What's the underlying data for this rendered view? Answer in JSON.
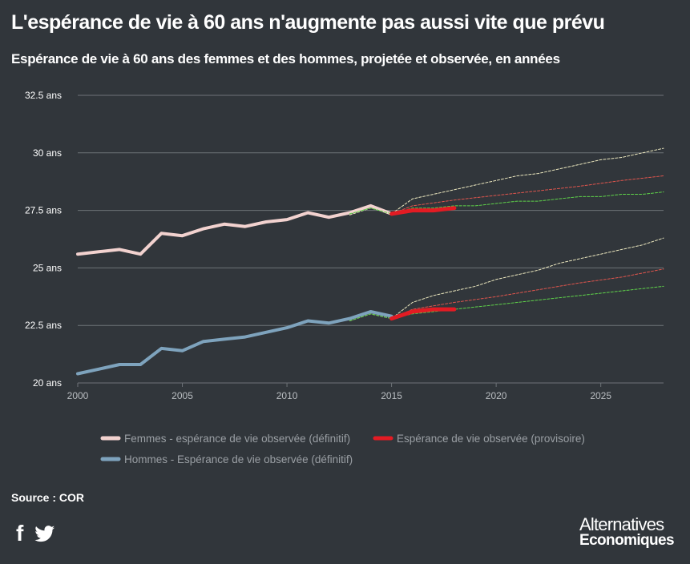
{
  "header": {
    "title": "L'espérance de vie à 60 ans n'augmente pas aussi vite que prévu",
    "subtitle": "Espérance de vie à 60 ans des femmes et des hommes, projetée et observée, en années"
  },
  "footer": {
    "source": "Source : COR",
    "brand_line1": "Alternatives",
    "brand_line2": "Economiques"
  },
  "social": {
    "facebook_icon": "facebook-icon",
    "twitter_icon": "twitter-icon"
  },
  "colors": {
    "background": "#31363b",
    "femmes": "#f2d2cf",
    "hommes": "#7ea3bd",
    "provisoire": "#e31b23",
    "proj_high": "#ece8bf",
    "proj_mid": "#e0554d",
    "proj_low": "#5fd44a",
    "grid": "#6e7378"
  },
  "chart_data": {
    "type": "line",
    "xlim": [
      2000,
      2028
    ],
    "ylim": [
      20,
      32.5
    ],
    "x_ticks": [
      2000,
      2005,
      2010,
      2015,
      2020,
      2025
    ],
    "y_ticks": [
      20,
      22.5,
      25,
      27.5,
      30,
      32.5
    ],
    "y_tick_labels": [
      "20 ans",
      "22.5 ans",
      "25 ans",
      "27.5 ans",
      "30 ans",
      "32.5 ans"
    ],
    "legend": [
      {
        "name": "Femmes - espérance de vie observée (définitif)",
        "color": "#f2d2cf"
      },
      {
        "name": "Espérance de vie observée (provisoire)",
        "color": "#e31b23"
      },
      {
        "name": "Hommes - Espérance de vie observée (définitif)",
        "color": "#7ea3bd"
      }
    ],
    "series": [
      {
        "name": "Femmes - espérance de vie observée (définitif)",
        "style": "solid",
        "x": [
          2000,
          2001,
          2002,
          2003,
          2004,
          2005,
          2006,
          2007,
          2008,
          2009,
          2010,
          2011,
          2012,
          2013,
          2014,
          2015
        ],
        "values": [
          25.6,
          25.7,
          25.8,
          25.6,
          26.5,
          26.4,
          26.7,
          26.9,
          26.8,
          27.0,
          27.1,
          27.4,
          27.2,
          27.4,
          27.7,
          27.35
        ]
      },
      {
        "name": "Hommes - Espérance de vie observée (définitif)",
        "style": "solid",
        "x": [
          2000,
          2001,
          2002,
          2003,
          2004,
          2005,
          2006,
          2007,
          2008,
          2009,
          2010,
          2011,
          2012,
          2013,
          2014,
          2015
        ],
        "values": [
          20.4,
          20.6,
          20.8,
          20.8,
          21.5,
          21.4,
          21.8,
          21.9,
          22.0,
          22.2,
          22.4,
          22.7,
          22.6,
          22.8,
          23.1,
          22.9
        ]
      },
      {
        "name": "Espérance de vie observée (provisoire)",
        "group": "femmes",
        "style": "thick",
        "x": [
          2015,
          2016,
          2017,
          2018
        ],
        "values": [
          27.35,
          27.5,
          27.5,
          27.6
        ]
      },
      {
        "name": "Espérance de vie observée (provisoire)",
        "group": "hommes",
        "style": "thick",
        "x": [
          2015,
          2016,
          2017,
          2018
        ],
        "values": [
          22.8,
          23.1,
          23.2,
          23.2
        ]
      },
      {
        "group": "femmes-proj-haute",
        "style": "dashed",
        "color_key": "proj_high",
        "x": [
          2013,
          2014,
          2015,
          2016,
          2017,
          2018,
          2019,
          2020,
          2021,
          2022,
          2023,
          2024,
          2025,
          2026,
          2027,
          2028
        ],
        "values": [
          27.3,
          27.6,
          27.35,
          28.0,
          28.2,
          28.4,
          28.6,
          28.8,
          29.0,
          29.1,
          29.3,
          29.5,
          29.7,
          29.8,
          30.0,
          30.2
        ]
      },
      {
        "group": "femmes-proj-centrale",
        "style": "dashed",
        "color_key": "proj_mid",
        "x": [
          2015,
          2016,
          2018,
          2020,
          2022,
          2024,
          2026,
          2028
        ],
        "values": [
          27.35,
          27.7,
          27.95,
          28.15,
          28.35,
          28.55,
          28.8,
          29.0
        ]
      },
      {
        "group": "femmes-proj-basse",
        "style": "dashed",
        "color_key": "proj_low",
        "x": [
          2013,
          2014,
          2015,
          2016,
          2017,
          2018,
          2019,
          2020,
          2021,
          2022,
          2023,
          2024,
          2025,
          2026,
          2027,
          2028
        ],
        "values": [
          27.35,
          27.6,
          27.35,
          27.6,
          27.6,
          27.7,
          27.7,
          27.8,
          27.9,
          27.9,
          28.0,
          28.1,
          28.1,
          28.2,
          28.2,
          28.3
        ]
      },
      {
        "group": "hommes-proj-haute",
        "style": "dashed",
        "color_key": "proj_high",
        "x": [
          2013,
          2014,
          2015,
          2016,
          2017,
          2018,
          2019,
          2020,
          2021,
          2022,
          2023,
          2024,
          2025,
          2026,
          2027,
          2028
        ],
        "values": [
          22.7,
          23.0,
          22.8,
          23.5,
          23.8,
          24.0,
          24.2,
          24.5,
          24.7,
          24.9,
          25.2,
          25.4,
          25.6,
          25.8,
          26.0,
          26.3
        ]
      },
      {
        "group": "hommes-proj-centrale",
        "style": "dashed",
        "color_key": "proj_mid",
        "x": [
          2015,
          2016,
          2018,
          2020,
          2022,
          2024,
          2026,
          2028
        ],
        "values": [
          22.8,
          23.2,
          23.5,
          23.75,
          24.05,
          24.35,
          24.6,
          24.95
        ]
      },
      {
        "group": "hommes-proj-basse",
        "style": "dashed",
        "color_key": "proj_low",
        "x": [
          2013,
          2014,
          2015,
          2016,
          2017,
          2018,
          2019,
          2020,
          2021,
          2022,
          2023,
          2024,
          2025,
          2026,
          2027,
          2028
        ],
        "values": [
          22.7,
          23.0,
          22.8,
          23.0,
          23.1,
          23.2,
          23.3,
          23.4,
          23.5,
          23.6,
          23.7,
          23.8,
          23.9,
          24.0,
          24.1,
          24.2
        ]
      }
    ]
  }
}
